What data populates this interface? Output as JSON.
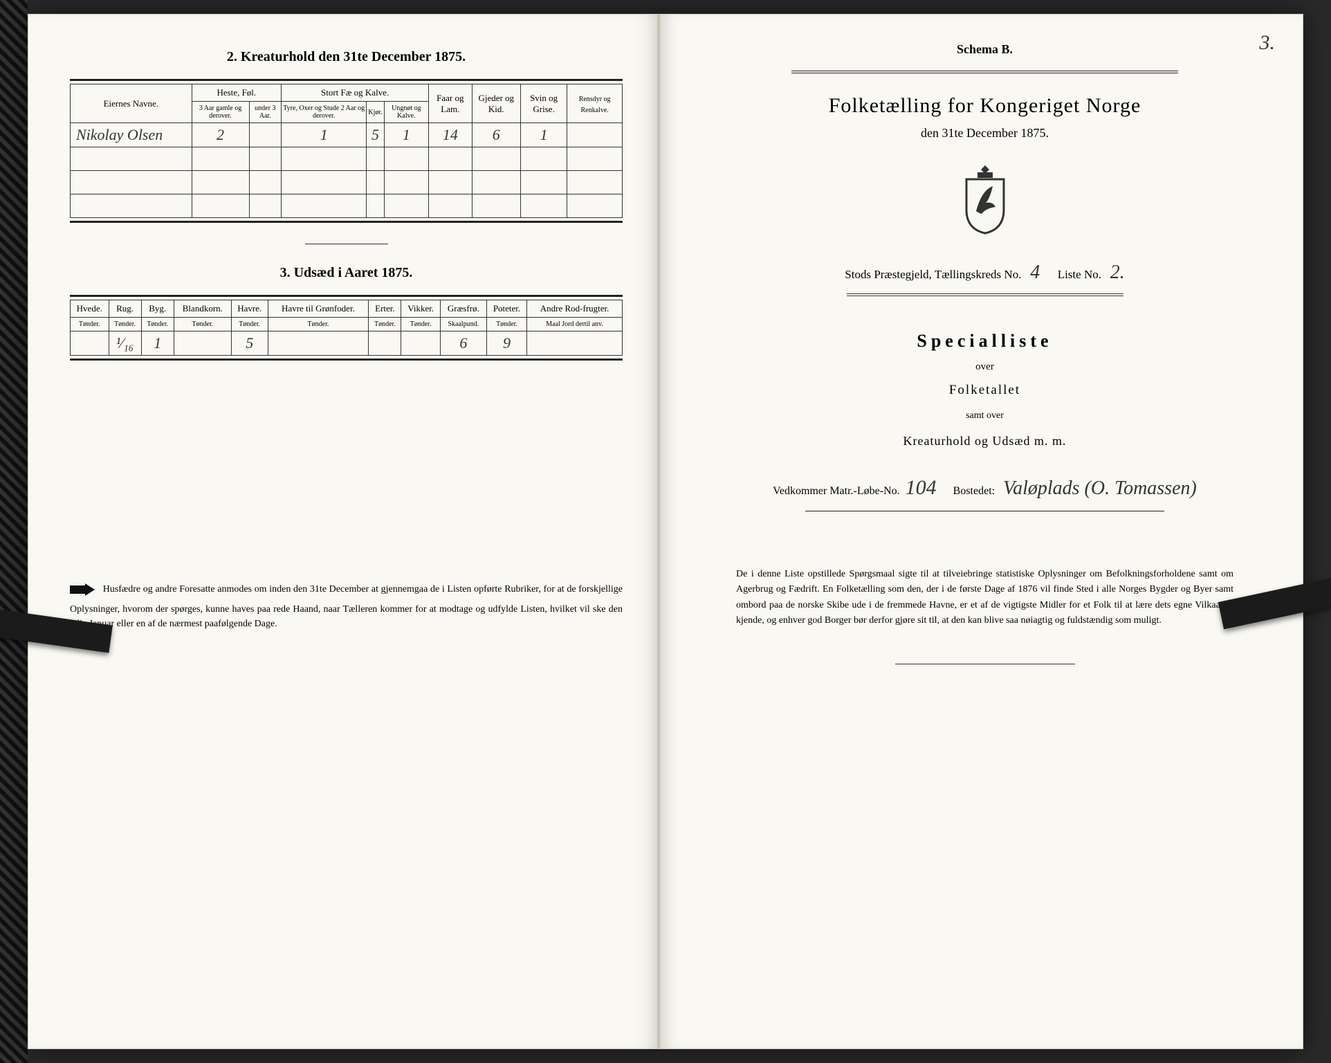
{
  "left": {
    "section2_title": "2.  Kreaturhold den 31te December 1875.",
    "table2": {
      "col_owner": "Eiernes Navne.",
      "grp_horse": "Heste, Føl.",
      "grp_cattle": "Stort Fæ og Kalve.",
      "col_sheep": "Faar og Lam.",
      "col_goat": "Gjeder og Kid.",
      "col_pig": "Svin og Grise.",
      "col_rein": "Rensdyr og Renkalve.",
      "sub_horse_a": "3 Aar gamle og derover.",
      "sub_horse_b": "under 3 Aar.",
      "sub_cattle_a": "Tyre, Oxer og Stude 2 Aar og derover.",
      "sub_cattle_b": "Kjør.",
      "sub_cattle_c": "Ungnøt og Kalve.",
      "row": {
        "owner": "Nikolay Olsen",
        "c1": "2",
        "c2": "",
        "c3": "1",
        "c4": "5",
        "c5": "1",
        "c6": "14",
        "c7": "6",
        "c8": "1",
        "c9": ""
      }
    },
    "section3_title": "3.  Udsæd i Aaret 1875.",
    "table3": {
      "cols": [
        "Hvede.",
        "Rug.",
        "Byg.",
        "Blandkorn.",
        "Havre.",
        "Havre til Grønfoder.",
        "Erter.",
        "Vikker.",
        "Græsfrø.",
        "Poteter.",
        "Andre Rod-frugter."
      ],
      "units": [
        "Tønder.",
        "Tønder.",
        "Tønder.",
        "Tønder.",
        "Tønder.",
        "Tønder.",
        "Tønder.",
        "Tønder.",
        "Skaalpund.",
        "Tønder.",
        "Maal Jord dertil anv."
      ],
      "row": [
        "",
        "¹⁄₁₆",
        "1",
        "",
        "5",
        "",
        "",
        "",
        "6",
        "9",
        ""
      ]
    },
    "footnote_lead": "Husfædre og andre Foresatte anmodes om inden den 31te December at gjennemgaa de i Listen opførte Rubriker, for at de forskjellige Oplysninger, hvorom der spørges, kunne haves paa rede Haand, naar Tælleren kommer for at modtage og udfylde Listen, hvilket vil ske den 3die Januar eller en af de nærmest paafølgende Dage."
  },
  "right": {
    "page_no": "3.",
    "schema": "Schema B.",
    "title": "Folketælling for Kongeriget Norge",
    "subtitle": "den 31te December 1875.",
    "prestegjeld_label_a": "Stods",
    "prestegjeld_label_b": "Præstegjeld, Tællingskreds No.",
    "kreds_no": "4",
    "liste_label": "Liste No.",
    "liste_no": "2.",
    "special": "Specialliste",
    "over": "over",
    "folketallet": "Folketallet",
    "samt": "samt over",
    "kreatur": "Kreaturhold og Udsæd m. m.",
    "matr_label": "Vedkommer Matr.-Løbe-No.",
    "matr_no": "104",
    "bosted_label": "Bostedet:",
    "bosted": "Valøplads (O. Tomassen)",
    "para": "De i denne Liste opstillede Spørgsmaal sigte til at tilveiebringe statistiske Oplysninger om Befolkningsforholdene samt om Agerbrug og Fædrift.  En Folketælling som den, der i de første Dage af 1876 vil finde Sted i alle Norges Bygder og Byer samt ombord paa de norske Skibe ude i de fremmede Havne, er et af de vigtigste Midler for et Folk til at lære dets egne Vilkaar at kjende, og enhver god Borger bør derfor gjøre sit til, at den kan blive saa nøiagtig og fuldstændig som muligt."
  },
  "colors": {
    "paper": "#faf8f2",
    "ink": "#222222"
  }
}
